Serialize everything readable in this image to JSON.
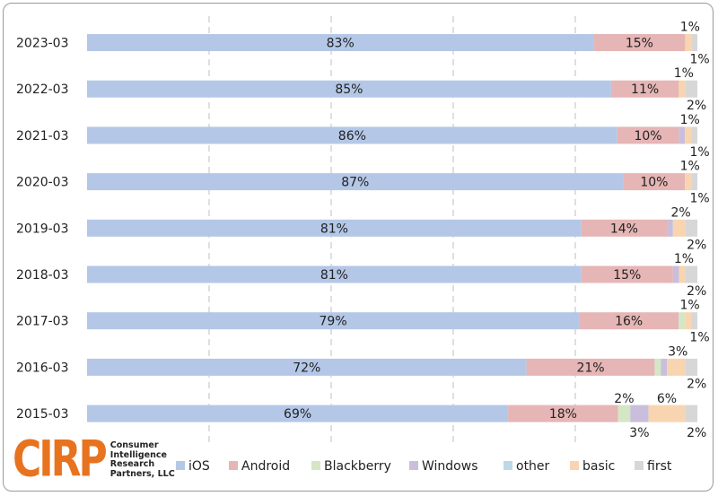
{
  "chart_data": {
    "type": "bar",
    "orientation": "horizontal",
    "stacked": true,
    "percent_stacked": true,
    "categories": [
      "2023-03",
      "2022-03",
      "2021-03",
      "2020-03",
      "2019-03",
      "2018-03",
      "2017-03",
      "2016-03",
      "2015-03"
    ],
    "series": [
      {
        "name": "iOS",
        "color": "#b4c7e7",
        "values": [
          83,
          85,
          86,
          87,
          81,
          81,
          79,
          72,
          69
        ]
      },
      {
        "name": "Android",
        "color": "#e6b5b5",
        "values": [
          15,
          11,
          10,
          10,
          14,
          15,
          16,
          21,
          18
        ]
      },
      {
        "name": "Blackberry",
        "color": "#d5e6c4",
        "values": [
          0,
          0,
          0,
          0,
          0,
          0,
          1,
          1,
          2
        ]
      },
      {
        "name": "Windows",
        "color": "#c9bfdc",
        "values": [
          0,
          0,
          1,
          0,
          1,
          1,
          0,
          1,
          3
        ]
      },
      {
        "name": "other",
        "color": "#bcd9ea",
        "values": [
          0,
          0,
          0,
          0,
          0,
          0,
          0,
          0,
          0
        ]
      },
      {
        "name": "basic",
        "color": "#f8d5b0",
        "values": [
          1,
          1,
          1,
          1,
          2,
          1,
          1,
          3,
          6
        ]
      },
      {
        "name": "first",
        "color": "#d7d7d7",
        "values": [
          1,
          2,
          1,
          1,
          2,
          2,
          1,
          2,
          2
        ]
      }
    ],
    "data_labels": [
      {
        "category": "2023-03",
        "series": "iOS",
        "text": "83%"
      },
      {
        "category": "2023-03",
        "series": "Android",
        "text": "15%"
      },
      {
        "category": "2023-03",
        "series": "basic",
        "text": "1%"
      },
      {
        "category": "2023-03",
        "series": "first",
        "text": "1%"
      },
      {
        "category": "2022-03",
        "series": "iOS",
        "text": "85%"
      },
      {
        "category": "2022-03",
        "series": "Android",
        "text": "11%"
      },
      {
        "category": "2022-03",
        "series": "basic",
        "text": "1%"
      },
      {
        "category": "2022-03",
        "series": "first",
        "text": "2%"
      },
      {
        "category": "2021-03",
        "series": "iOS",
        "text": "86%"
      },
      {
        "category": "2021-03",
        "series": "Android",
        "text": "10%"
      },
      {
        "category": "2021-03",
        "series": "basic",
        "text": "1%"
      },
      {
        "category": "2021-03",
        "series": "first",
        "text": "1%"
      },
      {
        "category": "2020-03",
        "series": "iOS",
        "text": "87%"
      },
      {
        "category": "2020-03",
        "series": "Android",
        "text": "10%"
      },
      {
        "category": "2020-03",
        "series": "basic",
        "text": "1%"
      },
      {
        "category": "2020-03",
        "series": "first",
        "text": "1%"
      },
      {
        "category": "2019-03",
        "series": "iOS",
        "text": "81%"
      },
      {
        "category": "2019-03",
        "series": "Android",
        "text": "14%"
      },
      {
        "category": "2019-03",
        "series": "basic",
        "text": "2%"
      },
      {
        "category": "2019-03",
        "series": "first",
        "text": "2%"
      },
      {
        "category": "2018-03",
        "series": "iOS",
        "text": "81%"
      },
      {
        "category": "2018-03",
        "series": "Android",
        "text": "15%"
      },
      {
        "category": "2018-03",
        "series": "basic",
        "text": "1%"
      },
      {
        "category": "2018-03",
        "series": "first",
        "text": "2%"
      },
      {
        "category": "2017-03",
        "series": "iOS",
        "text": "79%"
      },
      {
        "category": "2017-03",
        "series": "Android",
        "text": "16%"
      },
      {
        "category": "2017-03",
        "series": "basic",
        "text": "1%"
      },
      {
        "category": "2017-03",
        "series": "first",
        "text": "1%"
      },
      {
        "category": "2016-03",
        "series": "iOS",
        "text": "72%"
      },
      {
        "category": "2016-03",
        "series": "Android",
        "text": "21%"
      },
      {
        "category": "2016-03",
        "series": "basic",
        "text": "3%"
      },
      {
        "category": "2016-03",
        "series": "first",
        "text": "2%"
      },
      {
        "category": "2015-03",
        "series": "iOS",
        "text": "69%"
      },
      {
        "category": "2015-03",
        "series": "Android",
        "text": "18%"
      },
      {
        "category": "2015-03",
        "series": "Blackberry",
        "text": "2%"
      },
      {
        "category": "2015-03",
        "series": "Windows",
        "text": "3%"
      },
      {
        "category": "2015-03",
        "series": "basic",
        "text": "6%"
      },
      {
        "category": "2015-03",
        "series": "first",
        "text": "2%"
      }
    ],
    "xlim": [
      0,
      100
    ],
    "grid": "vertical dashed",
    "legend_position": "bottom"
  },
  "logo": {
    "mark": "CIRP",
    "lines": [
      "Consumer",
      "Intelligence",
      "Research",
      "Partners, LLC"
    ]
  }
}
